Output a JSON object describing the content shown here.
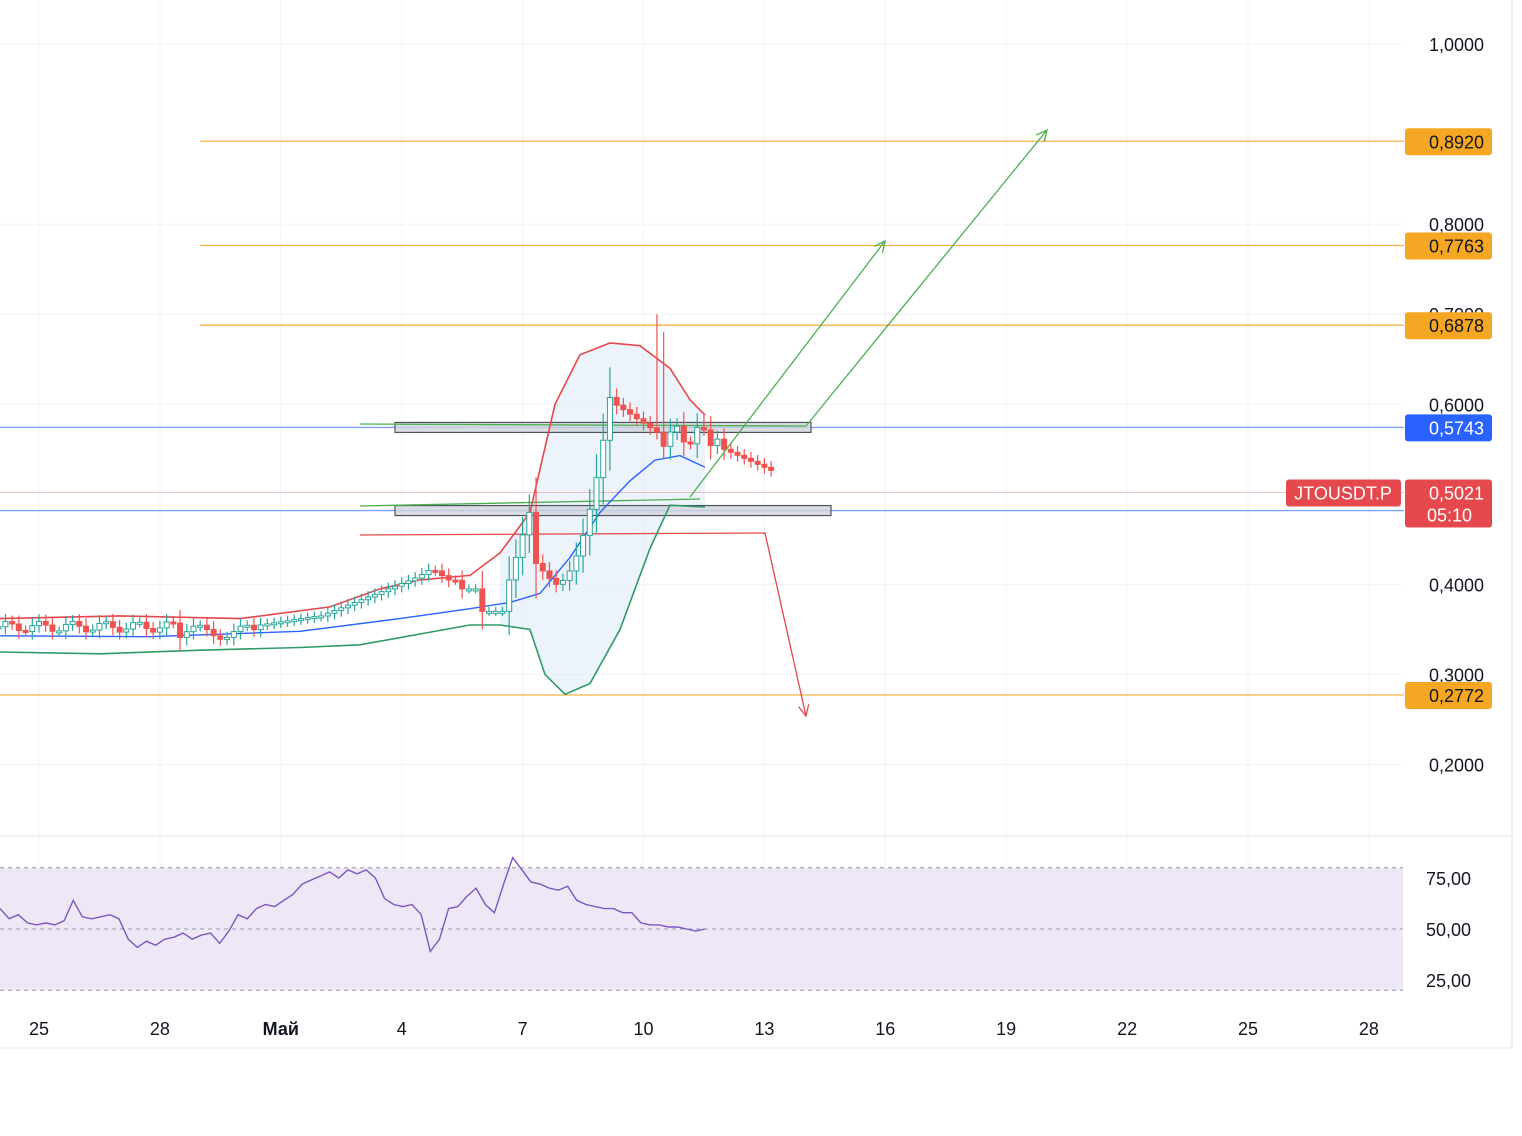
{
  "chart_data": {
    "type": "candlestick",
    "symbol": "JTOUSDT.P",
    "last_price": "0,5021",
    "countdown": "05:10",
    "price_axis": {
      "ticks": [
        "1,0000",
        "0,8000",
        "0,7000",
        "0,6000",
        "0,4000",
        "0,3000",
        "0,2000"
      ],
      "tick_values": [
        1.0,
        0.8,
        0.7,
        0.6,
        0.4,
        0.3,
        0.2
      ]
    },
    "date_axis": {
      "labels": [
        "25",
        "28",
        "Май",
        "4",
        "7",
        "10",
        "13",
        "16",
        "19",
        "22",
        "25",
        "28"
      ]
    },
    "levels": [
      {
        "label": "0,8920",
        "value": 0.892,
        "color": "#f5a623"
      },
      {
        "label": "0,7763",
        "value": 0.7763,
        "color": "#f5a623"
      },
      {
        "label": "0,6878",
        "value": 0.6878,
        "color": "#f5a623"
      },
      {
        "label": "0,5743",
        "value": 0.5743,
        "color": "#2962ff"
      },
      {
        "label": "0,4820",
        "value": 0.482,
        "color": "#2962ff"
      },
      {
        "label": "0,2772",
        "value": 0.2772,
        "color": "#f5a623"
      }
    ],
    "rsi": {
      "ticks": [
        "75,00",
        "50,00",
        "25,00"
      ],
      "upper": 80,
      "lower": 20,
      "values": [
        60,
        55,
        57,
        53,
        52,
        53,
        52,
        54,
        64,
        56,
        55,
        56,
        57,
        55,
        45,
        41,
        44,
        42,
        45,
        46,
        48,
        45,
        47,
        48,
        43,
        49,
        57,
        55,
        60,
        62,
        61,
        64,
        67,
        72,
        74,
        76,
        78,
        75,
        79,
        77,
        79,
        75,
        65,
        62,
        61,
        62,
        57,
        39,
        45,
        60,
        61,
        66,
        70,
        62,
        58,
        72,
        85,
        79,
        73,
        72,
        70,
        69,
        71,
        64,
        62,
        61,
        60,
        60,
        58,
        58,
        53,
        52,
        52,
        51,
        51,
        50,
        49,
        50
      ]
    },
    "colors": {
      "up": "#26a69a",
      "down": "#ef5350",
      "bb_upper": "#e5484d",
      "bb_lower": "#2e9a68",
      "bb_mid": "#2962ff",
      "rsi_line": "#7e57c2",
      "rsi_band": "#ede7f6"
    }
  }
}
